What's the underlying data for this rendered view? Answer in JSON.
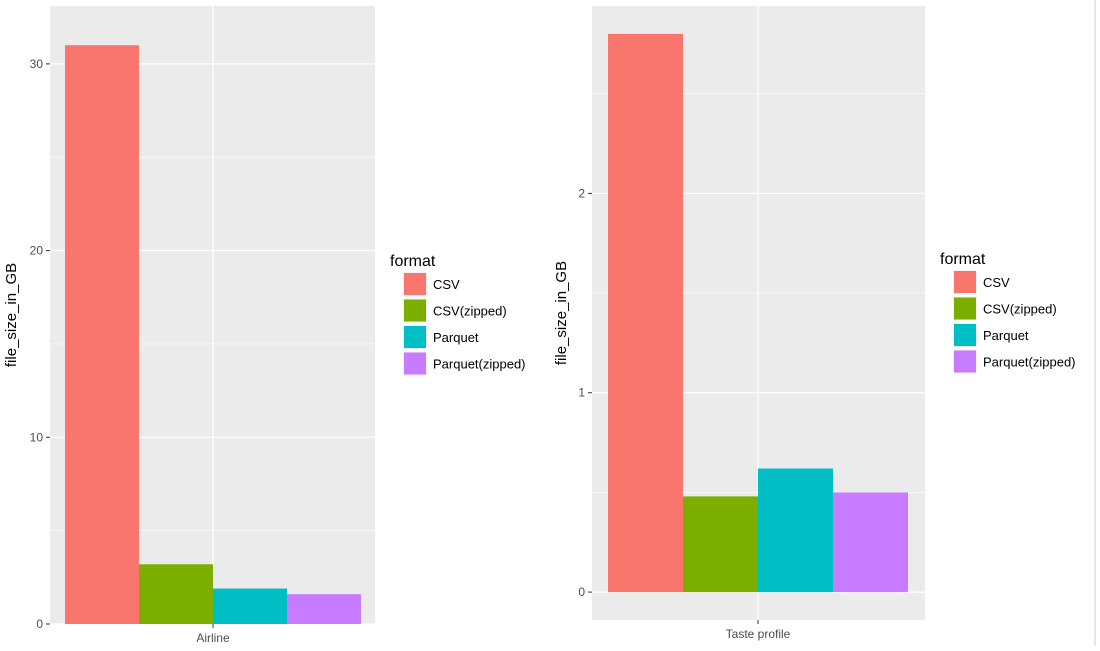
{
  "chart_data": [
    {
      "type": "bar",
      "categories": [
        "Airline"
      ],
      "series": [
        {
          "name": "CSV",
          "values": [
            31.0
          ]
        },
        {
          "name": "CSV(zipped)",
          "values": [
            3.2
          ]
        },
        {
          "name": "Parquet",
          "values": [
            1.9
          ]
        },
        {
          "name": "Parquet(zipped)",
          "values": [
            1.6
          ]
        }
      ],
      "xlabel": "",
      "ylabel": "file_size_in_GB",
      "ylim": [
        0,
        33.1
      ],
      "yticks": [
        0,
        10,
        20,
        30
      ],
      "grid": true,
      "legend": {
        "title": "format",
        "position": "right"
      }
    },
    {
      "type": "bar",
      "categories": [
        "Taste profile"
      ],
      "series": [
        {
          "name": "CSV",
          "values": [
            2.8
          ]
        },
        {
          "name": "CSV(zipped)",
          "values": [
            0.48
          ]
        },
        {
          "name": "Parquet",
          "values": [
            0.62
          ]
        },
        {
          "name": "Parquet(zipped)",
          "values": [
            0.5
          ]
        }
      ],
      "xlabel": "",
      "ylabel": "file_size_in_GB",
      "ylim": [
        -0.14,
        2.94
      ],
      "yticks": [
        0,
        1,
        2
      ],
      "grid": true,
      "legend": {
        "title": "format",
        "position": "right"
      }
    }
  ],
  "colors": {
    "CSV": "#f8766d",
    "CSV(zipped)": "#7cae00",
    "Parquet": "#00bfc4",
    "Parquet(zipped)": "#c77cff",
    "panel_background": "#ebebeb",
    "gridline": "#ffffff"
  }
}
